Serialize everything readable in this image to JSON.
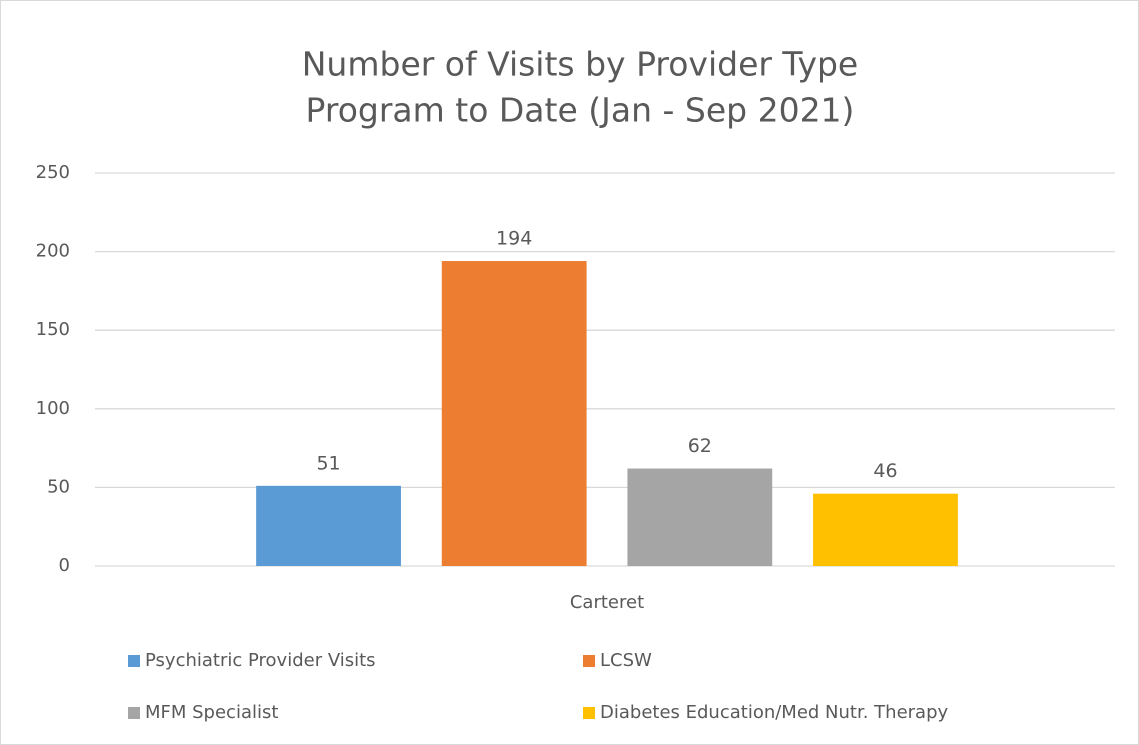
{
  "chart_data": {
    "type": "bar",
    "title": "Number of Visits by Provider Type",
    "subtitle": "Program to Date (Jan - Sep 2021)",
    "categories": [
      "Carteret"
    ],
    "series": [
      {
        "name": "Psychiatric Provider Visits",
        "color": "#5b9bd5",
        "values": [
          51
        ]
      },
      {
        "name": "LCSW",
        "color": "#ed7d31",
        "values": [
          194
        ]
      },
      {
        "name": "MFM Specialist",
        "color": "#a5a5a5",
        "values": [
          62
        ]
      },
      {
        "name": "Diabetes Education/Med Nutr. Therapy",
        "color": "#ffc000",
        "values": [
          46
        ]
      }
    ],
    "ylim": [
      0,
      250
    ],
    "yticks": [
      0,
      50,
      100,
      150,
      200,
      250
    ],
    "grid": true,
    "legend": "bottom"
  }
}
